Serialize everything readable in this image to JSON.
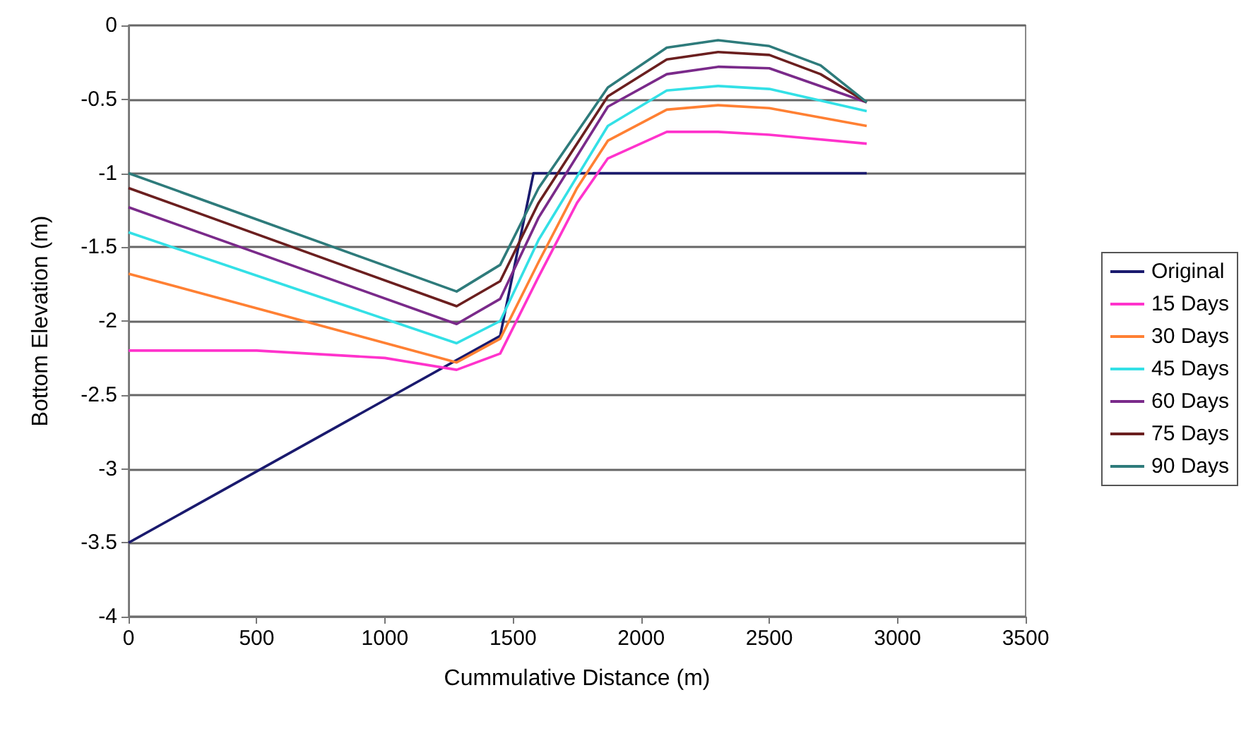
{
  "chart_data": {
    "type": "line",
    "xlabel": "Cummulative Distance (m)",
    "ylabel": "Bottom Elevation (m)",
    "xlim": [
      0,
      3500
    ],
    "xticks": [
      0,
      500,
      1000,
      1500,
      2000,
      2500,
      3000,
      3500
    ],
    "ylim": [
      -4,
      0
    ],
    "yticks": [
      -4,
      -3.5,
      -3,
      -2.5,
      -2,
      -1.5,
      -1,
      -0.5,
      0
    ],
    "grid": "y",
    "legend": "right",
    "marker": "none",
    "line_style": "solid",
    "series": [
      {
        "name": "Original",
        "color": "#1a1a6e",
        "x": [
          0,
          1450,
          1580,
          2880
        ],
        "values": [
          -3.5,
          -2.1,
          -1,
          -1
        ]
      },
      {
        "name": "15 Days",
        "color": "#ff33cc",
        "x": [
          0,
          500,
          1000,
          1280,
          1450,
          1600,
          1750,
          1870,
          2100,
          2300,
          2500,
          2880
        ],
        "values": [
          -2.2,
          -2.2,
          -2.25,
          -2.33,
          -2.22,
          -1.7,
          -1.2,
          -0.9,
          -0.72,
          -0.72,
          -0.74,
          -0.8
        ]
      },
      {
        "name": "30 Days",
        "color": "#ff8033",
        "x": [
          0,
          1280,
          1450,
          1600,
          1750,
          1870,
          2100,
          2300,
          2500,
          2880
        ],
        "values": [
          -1.68,
          -2.28,
          -2.12,
          -1.6,
          -1.1,
          -0.78,
          -0.57,
          -0.54,
          -0.56,
          -0.68
        ]
      },
      {
        "name": "45 Days",
        "color": "#33e0e6",
        "x": [
          0,
          1280,
          1450,
          1600,
          1870,
          2100,
          2300,
          2500,
          2880
        ],
        "values": [
          -1.4,
          -2.15,
          -2.0,
          -1.45,
          -0.68,
          -0.44,
          -0.41,
          -0.43,
          -0.58
        ]
      },
      {
        "name": "60 Days",
        "color": "#7a2a8a",
        "x": [
          0,
          1280,
          1450,
          1600,
          1870,
          2100,
          2300,
          2500,
          2880
        ],
        "values": [
          -1.23,
          -2.02,
          -1.85,
          -1.3,
          -0.55,
          -0.33,
          -0.28,
          -0.29,
          -0.52
        ]
      },
      {
        "name": "75 Days",
        "color": "#6b1f1f",
        "x": [
          0,
          1280,
          1450,
          1600,
          1870,
          2100,
          2300,
          2500,
          2700,
          2880
        ],
        "values": [
          -1.1,
          -1.9,
          -1.73,
          -1.2,
          -0.48,
          -0.23,
          -0.18,
          -0.2,
          -0.33,
          -0.52
        ]
      },
      {
        "name": "90 Days",
        "color": "#2e7b7b",
        "x": [
          0,
          1280,
          1450,
          1600,
          1870,
          2100,
          2300,
          2500,
          2700,
          2880
        ],
        "values": [
          -1.0,
          -1.8,
          -1.62,
          -1.1,
          -0.42,
          -0.15,
          -0.1,
          -0.14,
          -0.27,
          -0.52
        ]
      }
    ]
  }
}
